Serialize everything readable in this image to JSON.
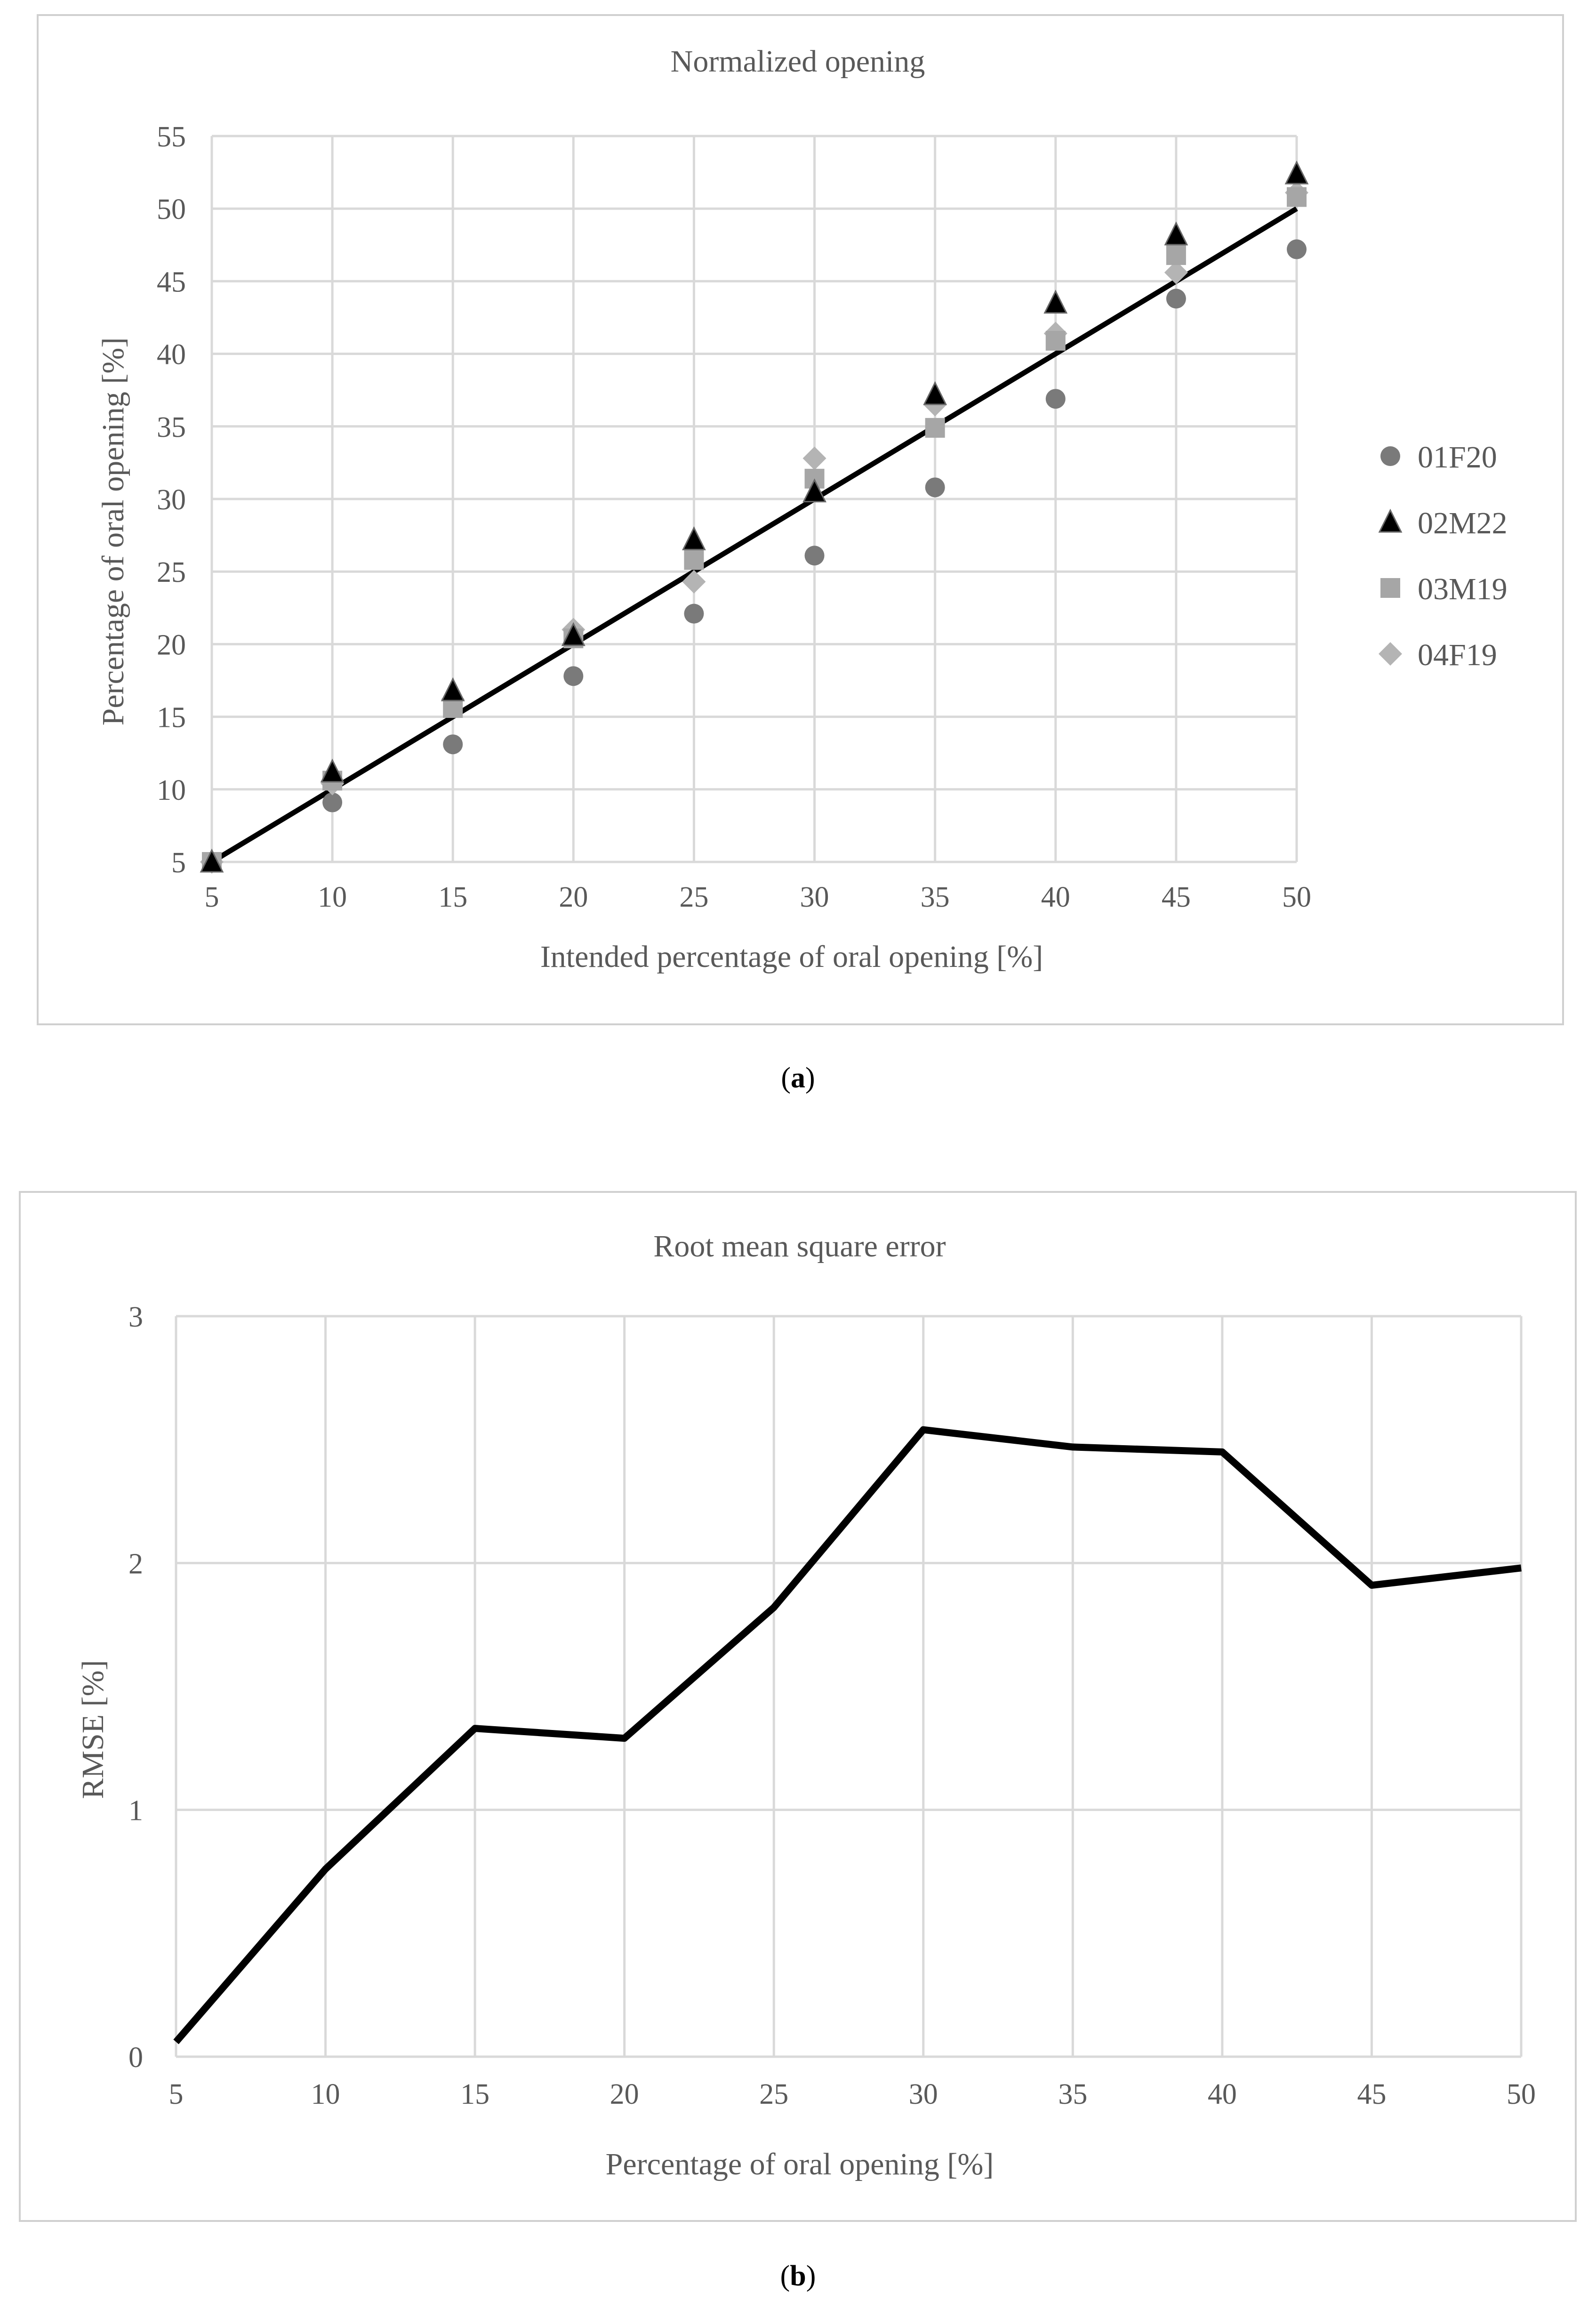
{
  "chart_data": [
    {
      "type": "scatter",
      "title": "Normalized opening",
      "xlabel": "Intended percentage of oral opening [%]",
      "ylabel": "Percentage of oral opening [%]",
      "xlim": [
        5,
        50
      ],
      "ylim": [
        5,
        55
      ],
      "xticks": [
        5,
        10,
        15,
        20,
        25,
        30,
        35,
        40,
        45,
        50
      ],
      "yticks": [
        5,
        10,
        15,
        20,
        25,
        30,
        35,
        40,
        45,
        50,
        55
      ],
      "grid": true,
      "legend_position": "right",
      "x": [
        5,
        10,
        15,
        20,
        25,
        30,
        35,
        40,
        45,
        50
      ],
      "series": [
        {
          "name": "01F20",
          "marker": "circle",
          "color": "#7a7a7a",
          "values": [
            5,
            9.1,
            13.1,
            17.8,
            22.1,
            26.1,
            30.8,
            36.9,
            43.8,
            47.2
          ]
        },
        {
          "name": "02M22",
          "marker": "triangle",
          "color": "#000000",
          "values": [
            5,
            11.2,
            16.8,
            20.6,
            27.2,
            30.5,
            37.2,
            43.5,
            48.2,
            52.4
          ]
        },
        {
          "name": "03M19",
          "marker": "square",
          "color": "#a6a6a6",
          "values": [
            5,
            10.6,
            15.6,
            20.4,
            25.8,
            31.4,
            34.9,
            40.9,
            46.8,
            50.8
          ]
        },
        {
          "name": "04F19",
          "marker": "diamond",
          "color": "#b4b4b4",
          "values": [
            5,
            10.4,
            16.2,
            21.0,
            24.3,
            32.8,
            36.5,
            41.4,
            45.6,
            51.1
          ]
        }
      ],
      "reference_line": {
        "x": [
          5,
          50
        ],
        "y": [
          5,
          50
        ],
        "color": "#000000"
      }
    },
    {
      "type": "line",
      "title": "Root mean square error",
      "xlabel": "Percentage of oral opening [%]",
      "ylabel": "RMSE [%]",
      "xlim": [
        5,
        50
      ],
      "ylim": [
        0,
        3
      ],
      "xticks": [
        5,
        10,
        15,
        20,
        25,
        30,
        35,
        40,
        45,
        50
      ],
      "yticks": [
        0,
        1,
        2,
        3
      ],
      "grid": true,
      "x": [
        5,
        10,
        15,
        20,
        25,
        30,
        35,
        40,
        45,
        50
      ],
      "series": [
        {
          "name": "RMSE",
          "color": "#000000",
          "values": [
            0.06,
            0.76,
            1.33,
            1.29,
            1.82,
            2.54,
            2.47,
            2.45,
            1.91,
            1.98
          ]
        }
      ]
    }
  ],
  "captions": {
    "a": "a",
    "b": "b"
  }
}
